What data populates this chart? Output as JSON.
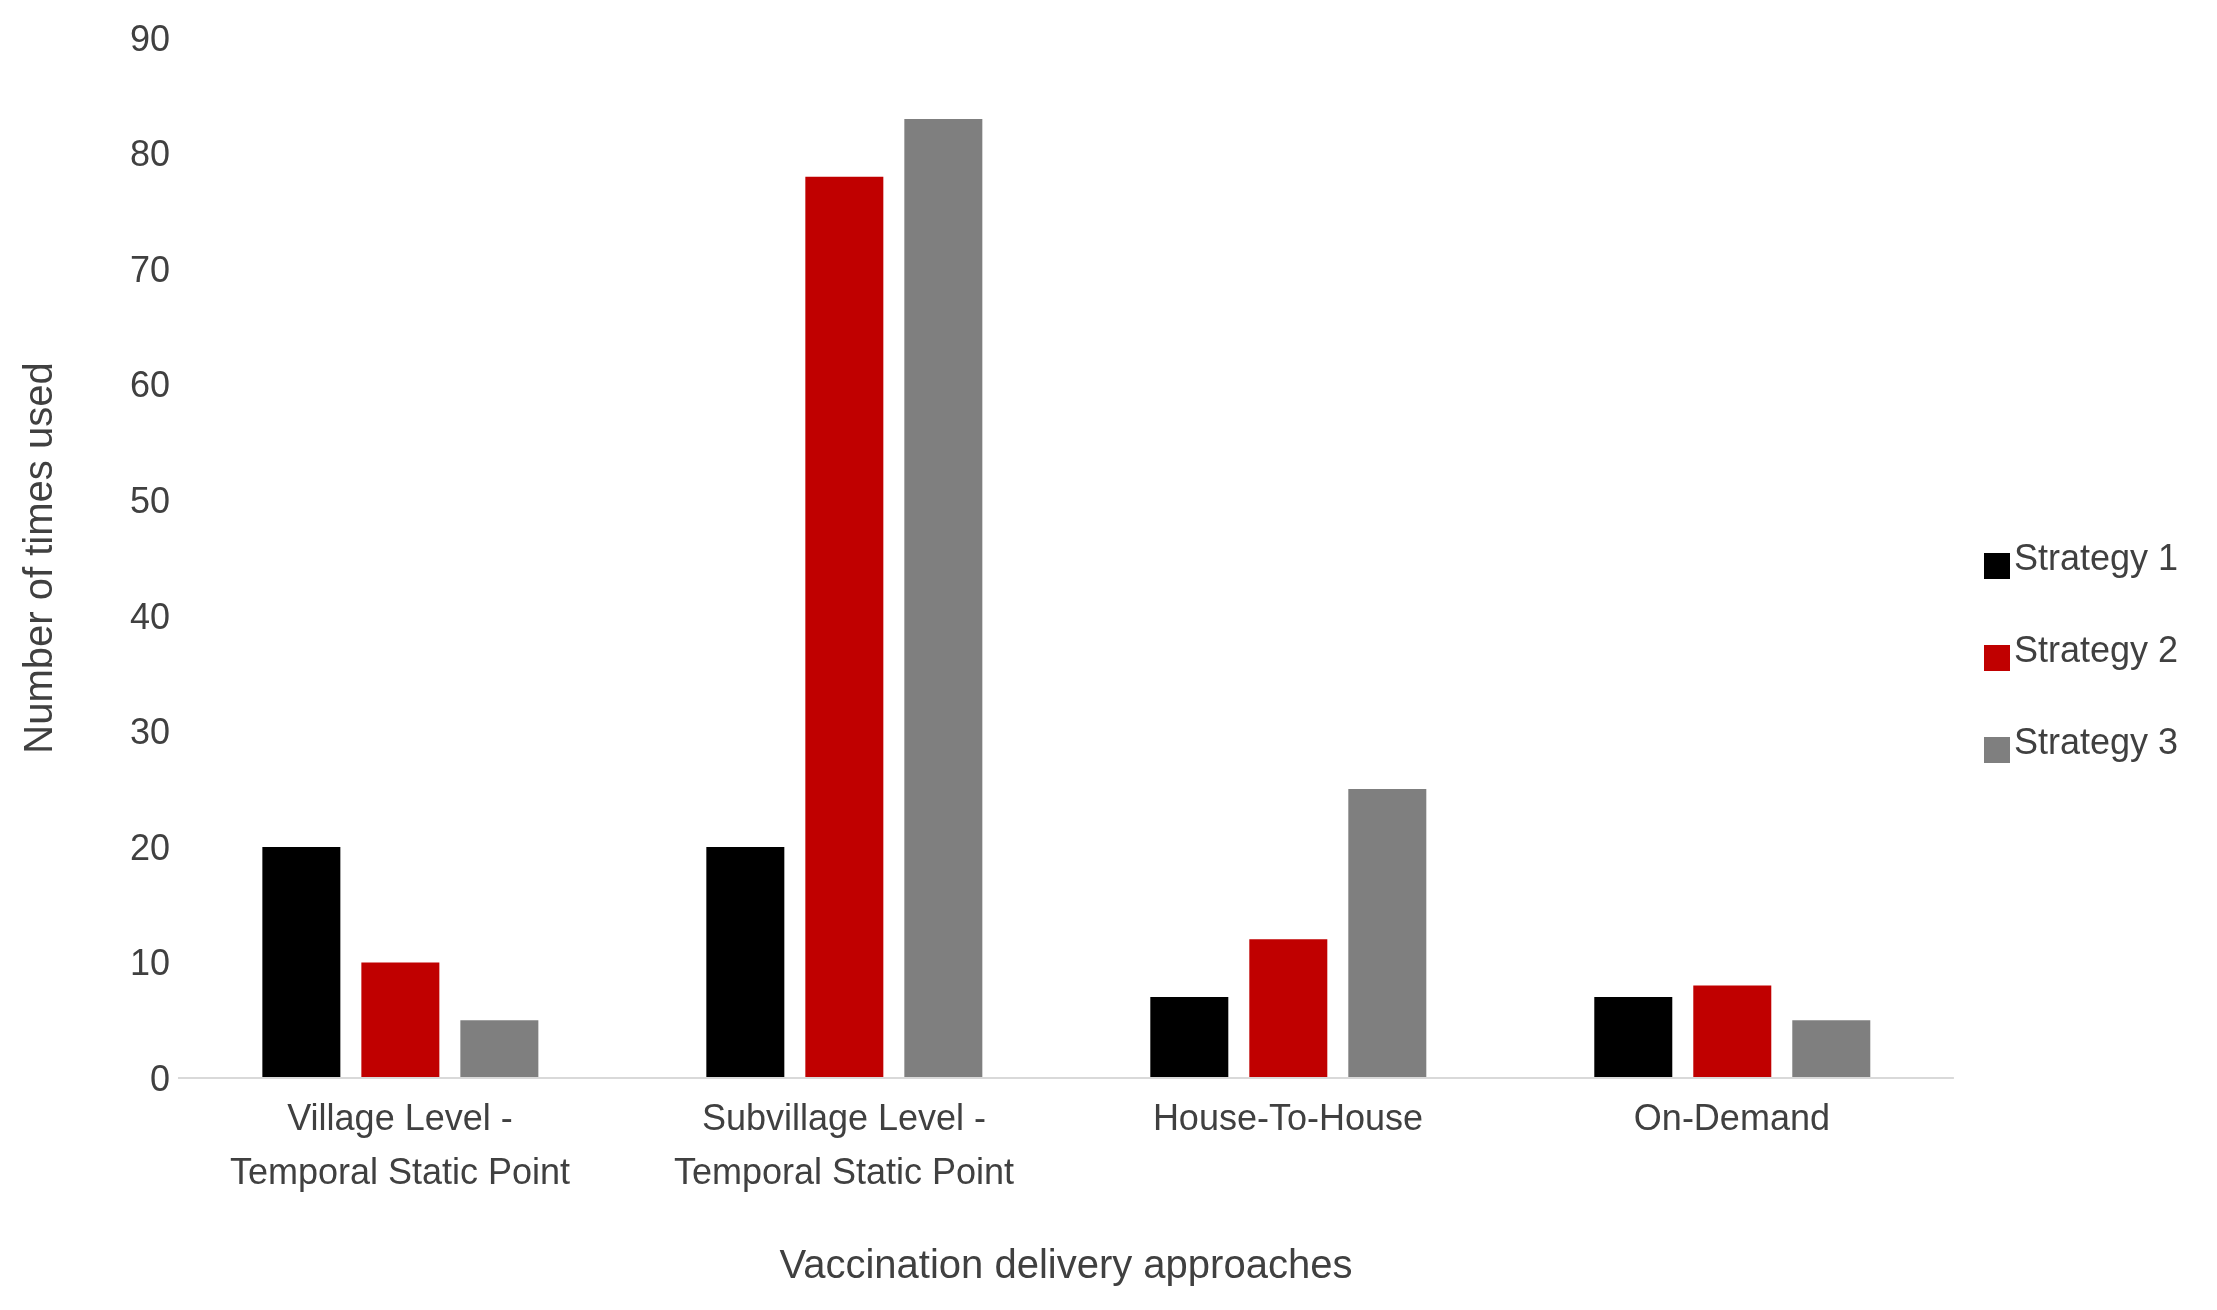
{
  "chart_data": {
    "type": "bar",
    "categories": [
      "Village Level - Temporal Static Point",
      "Subvillage Level - Temporal Static Point",
      "House-To-House",
      "On-Demand"
    ],
    "series": [
      {
        "name": "Strategy 1",
        "color": "#000000",
        "values": [
          20,
          20,
          7,
          7
        ]
      },
      {
        "name": "Strategy 2",
        "color": "#c00000",
        "values": [
          10,
          78,
          12,
          8
        ]
      },
      {
        "name": "Strategy 3",
        "color": "#7f7f7f",
        "values": [
          5,
          83,
          25,
          5
        ]
      }
    ],
    "xlabel": "Vaccination delivery approaches",
    "ylabel": "Number of times used",
    "ylim": [
      0,
      90
    ],
    "yticks": [
      0,
      10,
      20,
      30,
      40,
      50,
      60,
      70,
      80,
      90
    ],
    "grid": false,
    "legend": "right"
  }
}
